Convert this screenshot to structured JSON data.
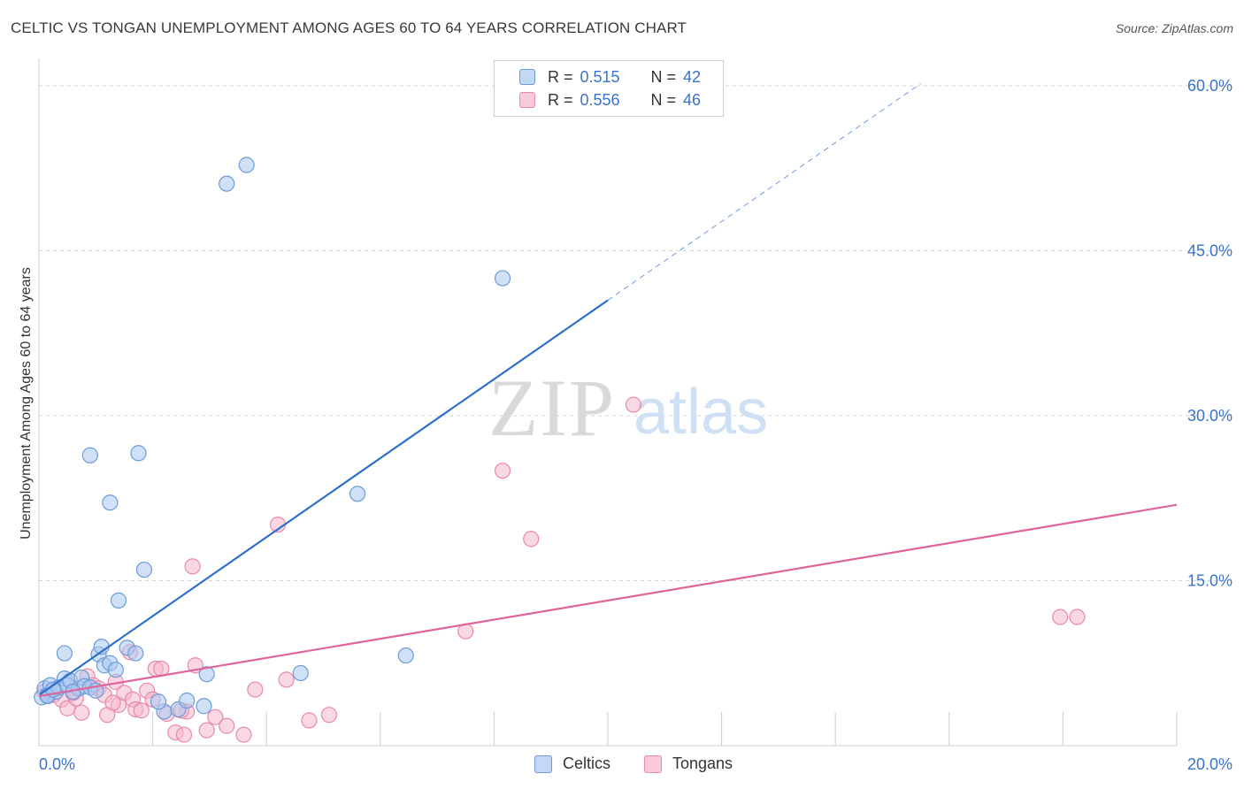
{
  "title": "CELTIC VS TONGAN UNEMPLOYMENT AMONG AGES 60 TO 64 YEARS CORRELATION CHART",
  "source": "Source: ZipAtlas.com",
  "watermark": {
    "zip": "ZIP",
    "atlas": "atlas"
  },
  "legend_top": {
    "rows": [
      {
        "r_label": "R =",
        "r_value": "0.515",
        "n_label": "N =",
        "n_value": "42"
      },
      {
        "r_label": "R =",
        "r_value": "0.556",
        "n_label": "N =",
        "n_value": "46"
      }
    ]
  },
  "legend_bottom": {
    "celtics": "Celtics",
    "tongans": "Tongans"
  },
  "colors": {
    "celtics_fill": "#a9c8f0",
    "celtics_stroke": "#6d9bd6",
    "celtics_line": "#2f6fcc",
    "tongans_fill": "#f6b8cc",
    "tongans_stroke": "#e88aa9",
    "tongans_line": "#e0649a",
    "axis_label": "#3a73c9",
    "grid": "#d6d6d6"
  },
  "chart_data": {
    "type": "scatter",
    "title": "CELTIC VS TONGAN UNEMPLOYMENT AMONG AGES 60 TO 64 YEARS CORRELATION CHART",
    "xlabel": "",
    "ylabel": "Unemployment Among Ages 60 to 64 years",
    "xlim": [
      0,
      20
    ],
    "ylim": [
      0,
      60
    ],
    "x_tick_labels": [
      {
        "value": 0,
        "label": "0.0%"
      },
      {
        "value": 20,
        "label": "20.0%"
      }
    ],
    "y_tick_labels": [
      {
        "value": 15,
        "label": "15.0%"
      },
      {
        "value": 30,
        "label": "30.0%"
      },
      {
        "value": 45,
        "label": "45.0%"
      },
      {
        "value": 60,
        "label": "60.0%"
      }
    ],
    "series": [
      {
        "name": "Celtics",
        "points": [
          [
            0.05,
            4.4
          ],
          [
            0.1,
            5.2
          ],
          [
            0.15,
            4.6
          ],
          [
            0.2,
            5.5
          ],
          [
            0.3,
            4.9
          ],
          [
            0.35,
            5.3
          ],
          [
            0.45,
            6.1
          ],
          [
            0.5,
            5.5
          ],
          [
            0.55,
            5.9
          ],
          [
            0.7,
            5.2
          ],
          [
            0.75,
            6.2
          ],
          [
            0.8,
            5.4
          ],
          [
            0.9,
            5.3
          ],
          [
            0.45,
            8.4
          ],
          [
            1.05,
            8.3
          ],
          [
            1.1,
            9.0
          ],
          [
            1.15,
            7.3
          ],
          [
            1.25,
            7.5
          ],
          [
            1.35,
            6.9
          ],
          [
            1.4,
            13.2
          ],
          [
            1.55,
            8.9
          ],
          [
            1.7,
            8.4
          ],
          [
            1.85,
            16.0
          ],
          [
            0.9,
            26.4
          ],
          [
            1.25,
            22.1
          ],
          [
            1.75,
            26.6
          ],
          [
            2.2,
            3.1
          ],
          [
            2.45,
            3.3
          ],
          [
            2.6,
            4.1
          ],
          [
            2.9,
            3.6
          ],
          [
            2.95,
            6.5
          ],
          [
            3.3,
            51.1
          ],
          [
            3.65,
            52.8
          ],
          [
            4.6,
            6.6
          ],
          [
            5.6,
            22.9
          ],
          [
            6.45,
            8.2
          ],
          [
            8.15,
            42.5
          ],
          [
            0.15,
            4.5
          ],
          [
            0.6,
            4.9
          ],
          [
            1.0,
            5.0
          ],
          [
            2.1,
            4.0
          ],
          [
            0.25,
            5.1
          ]
        ],
        "trend": {
          "x0": 0.0,
          "y0": 4.6,
          "x1": 10.0,
          "y1": 40.5,
          "dashed_to_x": 15.5,
          "dashed_to_y": 60.2
        }
      },
      {
        "name": "Tongans",
        "points": [
          [
            0.1,
            4.9
          ],
          [
            0.25,
            4.6
          ],
          [
            0.4,
            4.2
          ],
          [
            0.5,
            3.4
          ],
          [
            0.65,
            4.3
          ],
          [
            0.75,
            3.0
          ],
          [
            0.85,
            6.3
          ],
          [
            0.95,
            5.5
          ],
          [
            1.05,
            5.2
          ],
          [
            1.15,
            4.6
          ],
          [
            1.2,
            2.8
          ],
          [
            1.35,
            5.8
          ],
          [
            1.4,
            3.7
          ],
          [
            1.5,
            4.8
          ],
          [
            1.6,
            8.5
          ],
          [
            1.65,
            4.2
          ],
          [
            1.7,
            3.3
          ],
          [
            1.8,
            3.2
          ],
          [
            1.9,
            5.0
          ],
          [
            2.0,
            4.2
          ],
          [
            2.05,
            7.0
          ],
          [
            2.15,
            7.0
          ],
          [
            2.25,
            2.9
          ],
          [
            2.4,
            1.2
          ],
          [
            2.55,
            1.0
          ],
          [
            2.6,
            3.1
          ],
          [
            2.7,
            16.3
          ],
          [
            2.75,
            7.3
          ],
          [
            2.95,
            1.4
          ],
          [
            3.1,
            2.6
          ],
          [
            3.3,
            1.8
          ],
          [
            3.6,
            1.0
          ],
          [
            3.8,
            5.1
          ],
          [
            4.2,
            20.1
          ],
          [
            4.35,
            6.0
          ],
          [
            4.75,
            2.3
          ],
          [
            5.1,
            2.8
          ],
          [
            7.5,
            10.4
          ],
          [
            8.15,
            25.0
          ],
          [
            8.65,
            18.8
          ],
          [
            10.45,
            31.0
          ],
          [
            17.95,
            11.7
          ],
          [
            18.25,
            11.7
          ],
          [
            0.6,
            4.8
          ],
          [
            1.3,
            3.9
          ],
          [
            2.5,
            3.2
          ]
        ],
        "trend": {
          "x0": 0.0,
          "y0": 4.5,
          "x1": 20.0,
          "y1": 21.9
        }
      }
    ],
    "grid": true,
    "legend_position": "top-center"
  }
}
